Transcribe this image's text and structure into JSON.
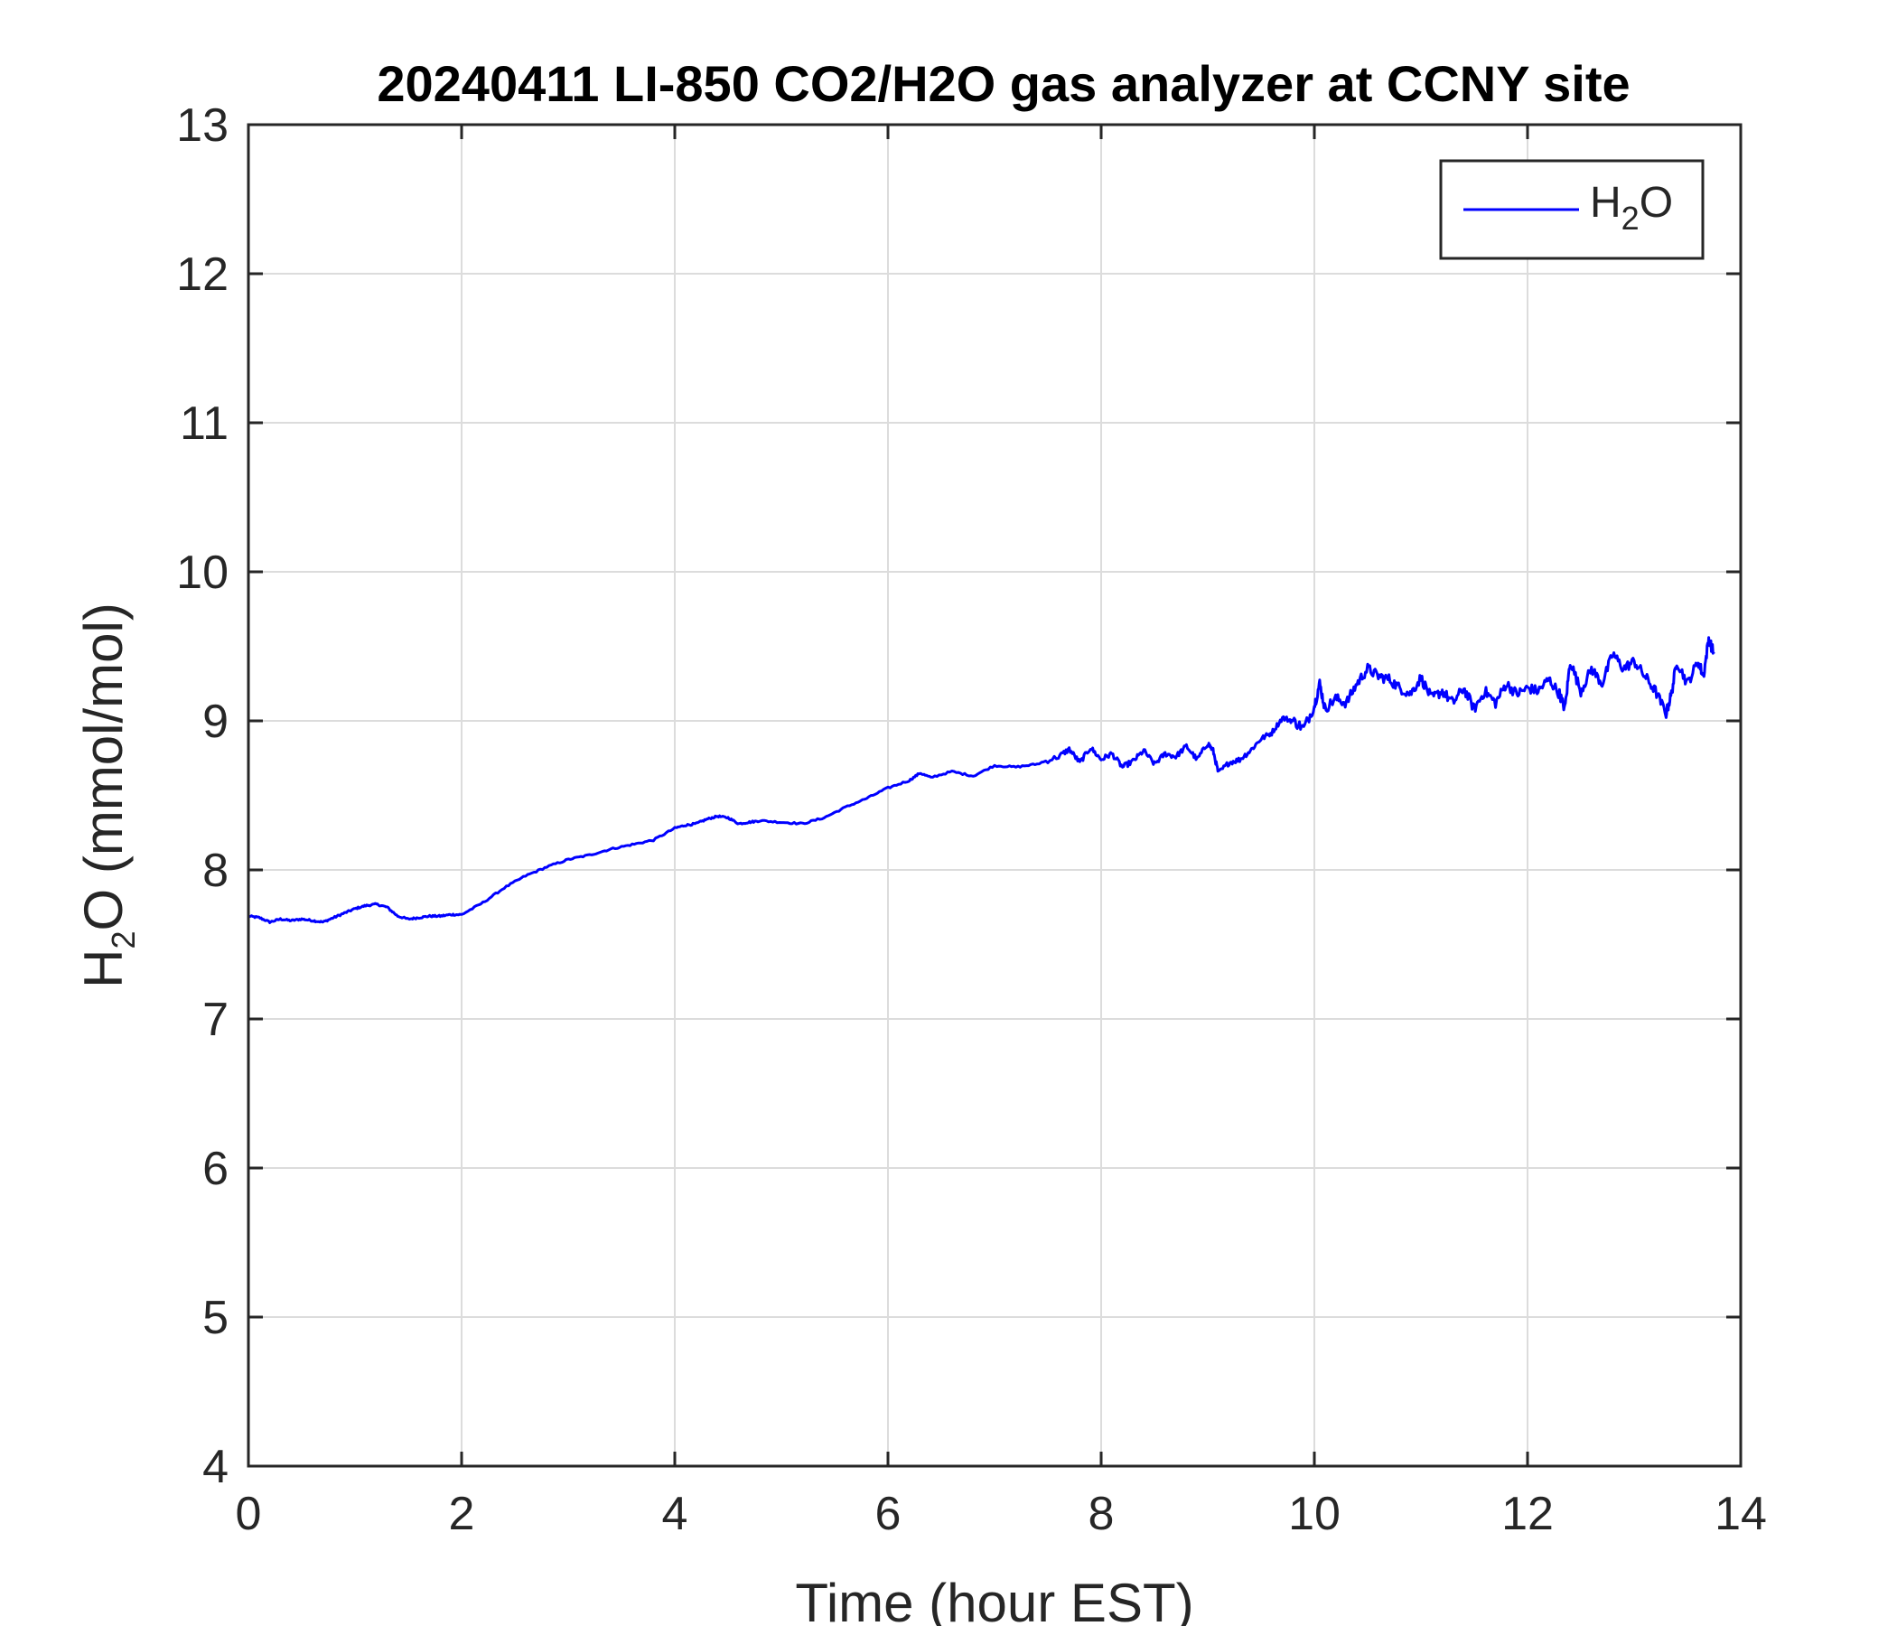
{
  "chart_data": {
    "type": "line",
    "title": "20240411 LI-850 CO2/H2O gas analyzer at CCNY site",
    "xlabel": "Time (hour EST)",
    "ylabel": {
      "prefix": "H",
      "sub": "2",
      "suffix": "O (mmol/mol)"
    },
    "xlim": [
      0,
      14
    ],
    "ylim": [
      4,
      13
    ],
    "xticks": [
      0,
      2,
      4,
      6,
      8,
      10,
      12,
      14
    ],
    "yticks": [
      4,
      5,
      6,
      7,
      8,
      9,
      10,
      11,
      12,
      13
    ],
    "grid": true,
    "legend_position": "top-right",
    "legend": {
      "prefix": "H",
      "sub": "2",
      "suffix": "O"
    },
    "series": [
      {
        "name": "H2O",
        "color": "#0000ff",
        "x": [
          0,
          0.1,
          0.2,
          0.3,
          0.4,
          0.5,
          0.6,
          0.7,
          0.8,
          0.9,
          1.0,
          1.1,
          1.2,
          1.3,
          1.4,
          1.5,
          1.6,
          1.7,
          1.8,
          1.9,
          2.0,
          2.2,
          2.4,
          2.6,
          2.8,
          3.0,
          3.2,
          3.4,
          3.6,
          3.8,
          4.0,
          4.1,
          4.2,
          4.3,
          4.4,
          4.5,
          4.6,
          4.7,
          4.8,
          5.0,
          5.2,
          5.4,
          5.6,
          5.8,
          6.0,
          6.2,
          6.3,
          6.4,
          6.6,
          6.8,
          7.0,
          7.2,
          7.4,
          7.6,
          7.7,
          7.8,
          7.9,
          8.0,
          8.1,
          8.2,
          8.3,
          8.4,
          8.5,
          8.6,
          8.7,
          8.8,
          8.9,
          9.0,
          9.05,
          9.1,
          9.2,
          9.3,
          9.4,
          9.5,
          9.6,
          9.7,
          9.8,
          9.9,
          10.0,
          10.05,
          10.1,
          10.2,
          10.3,
          10.4,
          10.5,
          10.6,
          10.7,
          10.8,
          10.9,
          11.0,
          11.1,
          11.2,
          11.3,
          11.4,
          11.5,
          11.6,
          11.7,
          11.8,
          11.9,
          12.0,
          12.1,
          12.2,
          12.3,
          12.35,
          12.4,
          12.5,
          12.6,
          12.7,
          12.8,
          12.9,
          13.0,
          13.1,
          13.2,
          13.3,
          13.35,
          13.4,
          13.5,
          13.6,
          13.65,
          13.7,
          13.75
        ],
        "values": [
          7.69,
          7.68,
          7.65,
          7.67,
          7.66,
          7.67,
          7.66,
          7.65,
          7.68,
          7.71,
          7.74,
          7.76,
          7.77,
          7.75,
          7.69,
          7.67,
          7.68,
          7.69,
          7.69,
          7.7,
          7.7,
          7.78,
          7.88,
          7.96,
          8.02,
          8.07,
          8.1,
          8.14,
          8.17,
          8.2,
          8.28,
          8.3,
          8.31,
          8.34,
          8.36,
          8.35,
          8.31,
          8.32,
          8.33,
          8.32,
          8.31,
          8.35,
          8.42,
          8.48,
          8.55,
          8.6,
          8.65,
          8.62,
          8.66,
          8.63,
          8.7,
          8.69,
          8.71,
          8.76,
          8.81,
          8.72,
          8.82,
          8.74,
          8.78,
          8.69,
          8.73,
          8.8,
          8.71,
          8.78,
          8.76,
          8.83,
          8.74,
          8.85,
          8.8,
          8.65,
          8.72,
          8.74,
          8.8,
          8.88,
          8.92,
          9.02,
          9.0,
          8.95,
          9.1,
          9.25,
          9.08,
          9.15,
          9.12,
          9.25,
          9.35,
          9.3,
          9.28,
          9.22,
          9.18,
          9.29,
          9.15,
          9.2,
          9.12,
          9.22,
          9.08,
          9.2,
          9.12,
          9.25,
          9.18,
          9.22,
          9.2,
          9.28,
          9.18,
          9.08,
          9.4,
          9.2,
          9.35,
          9.25,
          9.45,
          9.35,
          9.4,
          9.3,
          9.2,
          9.05,
          9.18,
          9.4,
          9.25,
          9.4,
          9.3,
          9.55,
          9.45
        ]
      }
    ]
  }
}
